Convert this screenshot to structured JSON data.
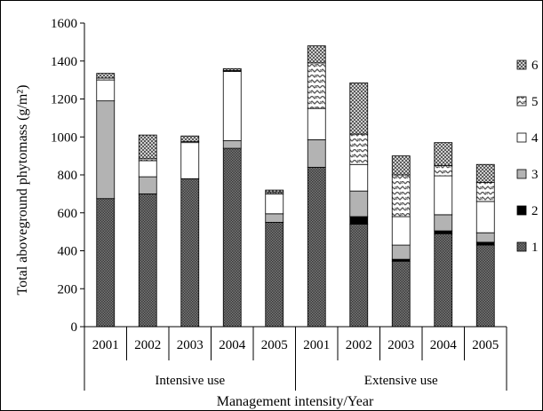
{
  "chart_data": {
    "type": "bar",
    "stacked": true,
    "title": "",
    "ylabel": "Total aboveground phytomass (g/m²)",
    "xlabel": "Management intensity/Year",
    "ylim": [
      0,
      1600
    ],
    "yticks": [
      0,
      200,
      400,
      600,
      800,
      1000,
      1200,
      1400,
      1600
    ],
    "grid": false,
    "legend_position": "right",
    "groups": [
      {
        "label": "Intensive use",
        "categories": [
          "2001",
          "2002",
          "2003",
          "2004",
          "2005"
        ]
      },
      {
        "label": "Extensive use",
        "categories": [
          "2001",
          "2002",
          "2003",
          "2004",
          "2005"
        ]
      }
    ],
    "series": [
      {
        "name": "1",
        "pattern": "dark-dots",
        "color": "#555555",
        "values": [
          675,
          700,
          780,
          940,
          550,
          840,
          540,
          345,
          490,
          430
        ]
      },
      {
        "name": "2",
        "pattern": "solid-black",
        "color": "#000000",
        "values": [
          0,
          0,
          0,
          0,
          0,
          0,
          40,
          10,
          15,
          15
        ]
      },
      {
        "name": "3",
        "pattern": "solid-gray",
        "color": "#b3b3b3",
        "values": [
          515,
          90,
          0,
          40,
          45,
          145,
          135,
          75,
          85,
          50
        ]
      },
      {
        "name": "4",
        "pattern": "white",
        "color": "#ffffff",
        "values": [
          110,
          85,
          190,
          365,
          105,
          165,
          140,
          150,
          205,
          165
        ]
      },
      {
        "name": "5",
        "pattern": "zigzag",
        "color": "#ffffff",
        "values": [
          10,
          10,
          5,
          5,
          10,
          240,
          160,
          220,
          55,
          100
        ]
      },
      {
        "name": "6",
        "pattern": "dense-check",
        "color": "#9a9a9a",
        "values": [
          25,
          125,
          30,
          10,
          10,
          90,
          270,
          100,
          120,
          95
        ]
      }
    ]
  }
}
